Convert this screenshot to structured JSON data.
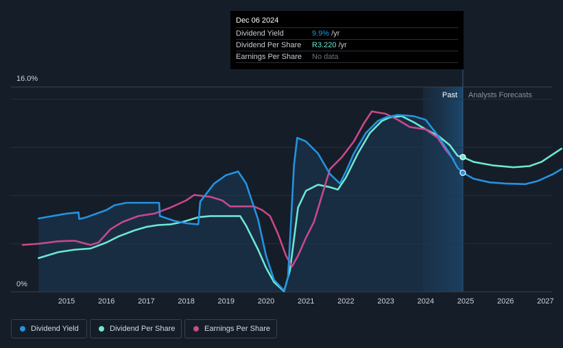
{
  "tooltip": {
    "date": "Dec 06 2024",
    "rows": [
      {
        "label": "Dividend Yield",
        "value": "9.9%",
        "unit": "/yr",
        "color": "#2394df"
      },
      {
        "label": "Dividend Per Share",
        "value": "R3.220",
        "unit": "/yr",
        "color": "#6ee8d3"
      },
      {
        "label": "Earnings Per Share",
        "value": "No data",
        "unit": "",
        "color": "#6c737e"
      }
    ]
  },
  "chart_data": {
    "type": "line",
    "y_axis": {
      "top_label": "16.0%",
      "bottom_label": "0%",
      "ylim": [
        0,
        16
      ]
    },
    "x_axis": {
      "ticks": [
        "2015",
        "2016",
        "2017",
        "2018",
        "2019",
        "2020",
        "2021",
        "2022",
        "2023",
        "2024",
        "2025",
        "2026",
        "2027"
      ]
    },
    "regions": {
      "past_label": "Past",
      "forecast_label": "Analysts Forecasts",
      "divider_x": 2024.93
    },
    "series": [
      {
        "name": "Dividend Yield",
        "color": "#2394df",
        "points": [
          [
            2014.3,
            6.1
          ],
          [
            2015.0,
            6.5
          ],
          [
            2015.3,
            6.6
          ],
          [
            2015.32,
            6.05
          ],
          [
            2015.5,
            6.2
          ],
          [
            2016.0,
            6.8
          ],
          [
            2016.2,
            7.2
          ],
          [
            2016.5,
            7.4
          ],
          [
            2017.0,
            7.4
          ],
          [
            2017.32,
            7.4
          ],
          [
            2017.34,
            6.3
          ],
          [
            2017.7,
            5.9
          ],
          [
            2018.0,
            5.7
          ],
          [
            2018.3,
            5.6
          ],
          [
            2018.35,
            7.5
          ],
          [
            2018.7,
            9.0
          ],
          [
            2019.0,
            9.7
          ],
          [
            2019.3,
            10.0
          ],
          [
            2019.5,
            9.0
          ],
          [
            2019.8,
            6.0
          ],
          [
            2020.0,
            3.0
          ],
          [
            2020.2,
            1.0
          ],
          [
            2020.45,
            0.1
          ],
          [
            2020.55,
            1.2
          ],
          [
            2020.7,
            10.5
          ],
          [
            2020.78,
            12.8
          ],
          [
            2021.0,
            12.5
          ],
          [
            2021.3,
            11.5
          ],
          [
            2021.6,
            9.8
          ],
          [
            2021.85,
            9.0
          ],
          [
            2022.0,
            10.0
          ],
          [
            2022.2,
            11.5
          ],
          [
            2022.5,
            13.2
          ],
          [
            2022.8,
            14.2
          ],
          [
            2023.0,
            14.5
          ],
          [
            2023.3,
            14.7
          ],
          [
            2023.7,
            14.6
          ],
          [
            2024.0,
            14.3
          ],
          [
            2024.3,
            13.0
          ],
          [
            2024.6,
            11.5
          ],
          [
            2024.8,
            10.3
          ],
          [
            2024.93,
            9.9
          ],
          [
            2025.2,
            9.4
          ],
          [
            2025.6,
            9.1
          ],
          [
            2026.0,
            9.0
          ],
          [
            2026.5,
            8.95
          ],
          [
            2026.8,
            9.2
          ],
          [
            2027.2,
            9.8
          ],
          [
            2027.4,
            10.2
          ]
        ]
      },
      {
        "name": "Dividend Per Share",
        "color": "#6ee8d3",
        "points": [
          [
            2014.3,
            2.8
          ],
          [
            2014.8,
            3.3
          ],
          [
            2015.2,
            3.5
          ],
          [
            2015.6,
            3.6
          ],
          [
            2016.0,
            4.1
          ],
          [
            2016.3,
            4.6
          ],
          [
            2016.7,
            5.1
          ],
          [
            2017.0,
            5.4
          ],
          [
            2017.3,
            5.55
          ],
          [
            2017.6,
            5.6
          ],
          [
            2017.9,
            5.8
          ],
          [
            2018.3,
            6.2
          ],
          [
            2018.6,
            6.3
          ],
          [
            2018.9,
            6.3
          ],
          [
            2019.2,
            6.3
          ],
          [
            2019.35,
            6.3
          ],
          [
            2019.5,
            5.5
          ],
          [
            2019.8,
            3.5
          ],
          [
            2020.0,
            2.0
          ],
          [
            2020.2,
            0.8
          ],
          [
            2020.45,
            0.05
          ],
          [
            2020.6,
            1.8
          ],
          [
            2020.8,
            7.0
          ],
          [
            2021.0,
            8.4
          ],
          [
            2021.3,
            8.9
          ],
          [
            2021.6,
            8.7
          ],
          [
            2021.8,
            8.5
          ],
          [
            2022.0,
            9.5
          ],
          [
            2022.3,
            11.5
          ],
          [
            2022.6,
            13.2
          ],
          [
            2022.9,
            14.2
          ],
          [
            2023.1,
            14.5
          ],
          [
            2023.4,
            14.6
          ],
          [
            2023.7,
            14.1
          ],
          [
            2024.0,
            13.5
          ],
          [
            2024.3,
            13.0
          ],
          [
            2024.6,
            12.2
          ],
          [
            2024.8,
            11.3
          ],
          [
            2024.93,
            11.2
          ],
          [
            2025.2,
            10.8
          ],
          [
            2025.7,
            10.5
          ],
          [
            2026.2,
            10.35
          ],
          [
            2026.6,
            10.45
          ],
          [
            2026.9,
            10.8
          ],
          [
            2027.4,
            11.9
          ]
        ]
      },
      {
        "name": "Earnings Per Share",
        "color": "#c8498c",
        "points": [
          [
            2013.9,
            3.9
          ],
          [
            2014.3,
            4.0
          ],
          [
            2014.8,
            4.2
          ],
          [
            2015.2,
            4.25
          ],
          [
            2015.6,
            3.9
          ],
          [
            2015.8,
            4.1
          ],
          [
            2016.1,
            5.2
          ],
          [
            2016.4,
            5.8
          ],
          [
            2016.8,
            6.3
          ],
          [
            2017.2,
            6.5
          ],
          [
            2017.6,
            7.0
          ],
          [
            2018.0,
            7.6
          ],
          [
            2018.2,
            8.05
          ],
          [
            2018.6,
            7.9
          ],
          [
            2018.9,
            7.6
          ],
          [
            2019.1,
            7.1
          ],
          [
            2019.4,
            7.1
          ],
          [
            2019.7,
            7.1
          ],
          [
            2019.9,
            6.8
          ],
          [
            2020.1,
            6.3
          ],
          [
            2020.3,
            4.8
          ],
          [
            2020.5,
            3.0
          ],
          [
            2020.65,
            2.1
          ],
          [
            2020.8,
            3.0
          ],
          [
            2021.0,
            4.5
          ],
          [
            2021.2,
            5.8
          ],
          [
            2021.4,
            8.0
          ],
          [
            2021.6,
            10.2
          ],
          [
            2021.9,
            11.2
          ],
          [
            2022.2,
            12.5
          ],
          [
            2022.45,
            14.0
          ],
          [
            2022.65,
            15.0
          ],
          [
            2023.0,
            14.8
          ],
          [
            2023.3,
            14.3
          ],
          [
            2023.6,
            13.7
          ],
          [
            2024.0,
            13.5
          ],
          [
            2024.3,
            12.8
          ],
          [
            2024.5,
            11.8
          ],
          [
            2024.7,
            11.0
          ]
        ]
      }
    ],
    "markers": [
      {
        "series": "Dividend Yield",
        "x": 2024.93,
        "y": 9.9
      },
      {
        "series": "Dividend Per Share",
        "x": 2024.93,
        "y": 11.2
      }
    ]
  },
  "legend": [
    {
      "label": "Dividend Yield",
      "color": "#2394df"
    },
    {
      "label": "Dividend Per Share",
      "color": "#6ee8d3"
    },
    {
      "label": "Earnings Per Share",
      "color": "#c8498c"
    }
  ]
}
